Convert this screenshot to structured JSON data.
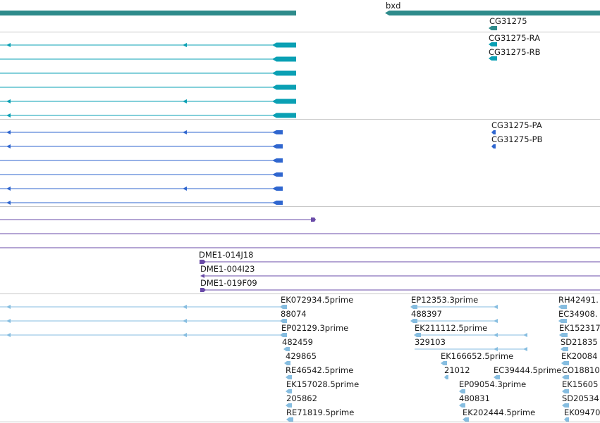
{
  "colors": {
    "gene": "#2e8b8b",
    "transcript_rna": "#0aa0b4",
    "protein": "#2f66cf",
    "clone": "#6a4ba8",
    "est": "#86bde0",
    "divider": "#c8c8c8"
  },
  "labels": {
    "gene_bxd": "bxd",
    "gene_cg31275": "CG31275",
    "rna_a": "CG31275-RA",
    "rna_b": "CG31275-RB",
    "protein_a": "CG31275-PA",
    "protein_b": "CG31275-PB",
    "clone_1": "DME1-014J18",
    "clone_2": "DME1-004I23",
    "clone_3": "DME1-019F09",
    "est_a1": "EK072934.5prime",
    "est_a2": "88074",
    "est_a3": "EP02129.3prime",
    "est_a4": "482459",
    "est_a5": "429865",
    "est_a6": "RE46542.5prime",
    "est_a7": "EK157028.5prime",
    "est_a8": "205862",
    "est_a9": "RE71819.5prime",
    "est_b1": "EP12353.3prime",
    "est_b2": "488397",
    "est_b3": "EK211112.5prime",
    "est_b4": "329103",
    "est_b5": "EK166652.5prime",
    "est_b6": "21012",
    "est_b7": "EC39444.5prime",
    "est_b8": "EP09054.3prime",
    "est_b9": "480831",
    "est_b10": "EK202444.5prime",
    "est_c1": "RH42491.",
    "est_c2": "EC34908.",
    "est_c3": "EK152317",
    "est_c4": "SD21835",
    "est_c5": "EK20084",
    "est_c6": "CO18810",
    "est_c7": "EK15605",
    "est_c8": "SD20534",
    "est_c9": "EK09470"
  }
}
